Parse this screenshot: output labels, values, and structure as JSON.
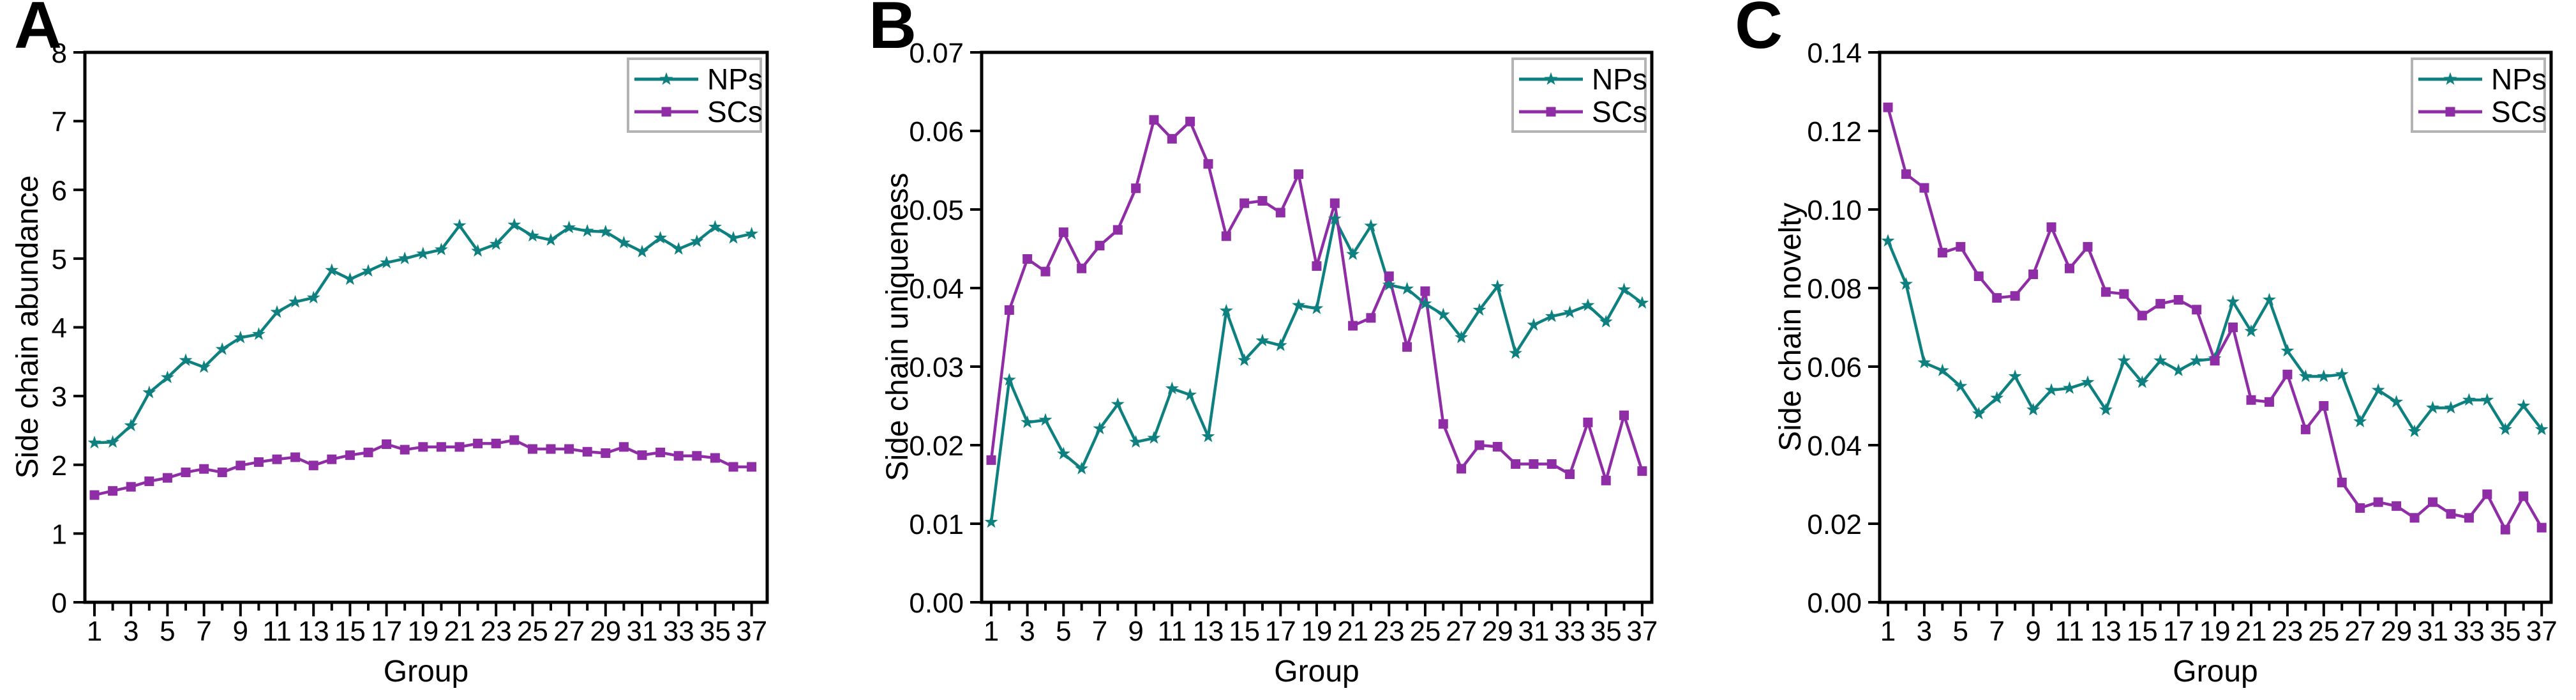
{
  "chart_data": [
    {
      "type": "line",
      "letter": "A",
      "ylabel": "Side chain abundance",
      "xlabel": "Group",
      "ylim": [
        0,
        8
      ],
      "ytick_step": 1,
      "ytick_decimals": 0,
      "x_range": [
        1,
        37
      ],
      "xtick_labels": [
        "1",
        "3",
        "5",
        "7",
        "9",
        "11",
        "13",
        "15",
        "17",
        "19",
        "21",
        "23",
        "25",
        "27",
        "29",
        "31",
        "33",
        "35",
        "37"
      ],
      "grid": false,
      "legend_position": "top-right",
      "series": [
        {
          "name": "NPs",
          "color": "#0d807f",
          "marker": "star",
          "values": [
            2.32,
            2.33,
            2.57,
            3.05,
            3.27,
            3.52,
            3.42,
            3.68,
            3.85,
            3.9,
            4.22,
            4.37,
            4.43,
            4.83,
            4.7,
            4.82,
            4.94,
            5.0,
            5.07,
            5.13,
            5.48,
            5.11,
            5.21,
            5.49,
            5.33,
            5.27,
            5.45,
            5.4,
            5.39,
            5.23,
            5.1,
            5.3,
            5.14,
            5.25,
            5.46,
            5.3,
            5.36
          ]
        },
        {
          "name": "SCs",
          "color": "#8f2da6",
          "marker": "square",
          "values": [
            1.56,
            1.62,
            1.68,
            1.76,
            1.81,
            1.89,
            1.94,
            1.89,
            1.99,
            2.04,
            2.08,
            2.11,
            1.99,
            2.08,
            2.14,
            2.18,
            2.3,
            2.22,
            2.26,
            2.26,
            2.26,
            2.31,
            2.31,
            2.36,
            2.23,
            2.23,
            2.23,
            2.19,
            2.17,
            2.26,
            2.14,
            2.18,
            2.13,
            2.13,
            2.1,
            1.97,
            1.97
          ]
        }
      ]
    },
    {
      "type": "line",
      "letter": "B",
      "ylabel": "Side chain uniqueness",
      "xlabel": "Group",
      "ylim": [
        0,
        0.07
      ],
      "ytick_step": 0.01,
      "ytick_decimals": 2,
      "x_range": [
        1,
        37
      ],
      "xtick_labels": [
        "1",
        "3",
        "5",
        "7",
        "9",
        "11",
        "13",
        "15",
        "17",
        "19",
        "21",
        "23",
        "25",
        "27",
        "29",
        "31",
        "33",
        "35",
        "37"
      ],
      "grid": false,
      "legend_position": "top-right",
      "series": [
        {
          "name": "NPs",
          "color": "#0d807f",
          "marker": "star",
          "values": [
            0.0102,
            0.0283,
            0.0229,
            0.0232,
            0.0189,
            0.017,
            0.0221,
            0.0252,
            0.0204,
            0.0209,
            0.0272,
            0.0264,
            0.0211,
            0.0371,
            0.0308,
            0.0333,
            0.0327,
            0.0378,
            0.0374,
            0.0488,
            0.0443,
            0.0479,
            0.0404,
            0.0399,
            0.038,
            0.0366,
            0.0337,
            0.0372,
            0.0402,
            0.0317,
            0.0353,
            0.0364,
            0.0369,
            0.0378,
            0.0357,
            0.0398,
            0.0381
          ]
        },
        {
          "name": "SCs",
          "color": "#8f2da6",
          "marker": "square",
          "values": [
            0.0181,
            0.0372,
            0.0437,
            0.0421,
            0.0471,
            0.0425,
            0.0454,
            0.0474,
            0.0527,
            0.0614,
            0.059,
            0.0612,
            0.0558,
            0.0466,
            0.0508,
            0.0511,
            0.0496,
            0.0545,
            0.0428,
            0.0508,
            0.0352,
            0.0362,
            0.0415,
            0.0325,
            0.0396,
            0.0227,
            0.017,
            0.02,
            0.0198,
            0.0176,
            0.0176,
            0.0176,
            0.0163,
            0.0229,
            0.0155,
            0.0238,
            0.0167
          ]
        }
      ]
    },
    {
      "type": "line",
      "letter": "C",
      "ylabel": "Side chain novelty",
      "xlabel": "Group",
      "ylim": [
        0,
        0.14
      ],
      "ytick_step": 0.02,
      "ytick_decimals": 2,
      "x_range": [
        1,
        37
      ],
      "xtick_labels": [
        "1",
        "3",
        "5",
        "7",
        "9",
        "11",
        "13",
        "15",
        "17",
        "19",
        "21",
        "23",
        "25",
        "27",
        "29",
        "31",
        "33",
        "35",
        "37"
      ],
      "grid": false,
      "legend_position": "top-right",
      "series": [
        {
          "name": "NPs",
          "color": "#0d807f",
          "marker": "star",
          "values": [
            0.092,
            0.081,
            0.061,
            0.059,
            0.055,
            0.048,
            0.052,
            0.0575,
            0.049,
            0.054,
            0.0545,
            0.056,
            0.049,
            0.0615,
            0.056,
            0.0615,
            0.059,
            0.0615,
            0.062,
            0.0765,
            0.069,
            0.077,
            0.064,
            0.0575,
            0.0575,
            0.058,
            0.046,
            0.054,
            0.051,
            0.0435,
            0.0495,
            0.0495,
            0.0515,
            0.0515,
            0.044,
            0.05,
            0.044
          ]
        },
        {
          "name": "SCs",
          "color": "#8f2da6",
          "marker": "square",
          "values": [
            0.126,
            0.109,
            0.1055,
            0.089,
            0.0905,
            0.083,
            0.0775,
            0.078,
            0.0835,
            0.0955,
            0.085,
            0.0905,
            0.079,
            0.0785,
            0.073,
            0.076,
            0.077,
            0.0745,
            0.0615,
            0.07,
            0.0515,
            0.051,
            0.058,
            0.044,
            0.05,
            0.0305,
            0.024,
            0.0255,
            0.0245,
            0.0215,
            0.0255,
            0.0225,
            0.0215,
            0.0275,
            0.0185,
            0.027,
            0.019
          ]
        }
      ]
    }
  ]
}
